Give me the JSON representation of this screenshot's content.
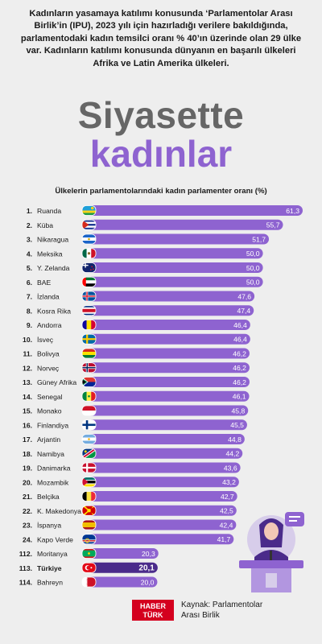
{
  "intro": "Kadınların yasamaya katılımı konusunda ‘Parlamentolar Arası Birlik’in (IPU), 2023 yılı için hazırladığı verilere bakıldığında, parlamentodaki kadın temsilci oranı % 40’ın üzerinde olan 29 ülke var. Kadınların katılımı konusunda dünyanın en başarılı ülkeleri Afrika ve Latin Amerika ülkeleri.",
  "title_line1": "Siyasette",
  "title_line2": "kadınlar",
  "source_line1": "Kaynak: Parlamentolar",
  "source_line2": "Arası Birlik",
  "logo_line1": "HABER",
  "logo_line2": "TÜRK",
  "colors": {
    "bar": "#8e63d0",
    "highlight": "#4a2b8a",
    "title_gray": "#666666",
    "accent": "#8e63d0",
    "logo": "#d4001e"
  },
  "chart_data": {
    "type": "bar",
    "orientation": "horizontal",
    "title": "Ülkelerin parlamentolarındaki kadın parlamenter oranı (%)",
    "xlim": [
      0,
      61.3
    ],
    "highlight": "Türkiye",
    "ranks": [
      "1.",
      "2.",
      "3.",
      "4.",
      "5.",
      "6.",
      "7.",
      "8.",
      "9.",
      "10.",
      "11.",
      "12.",
      "13.",
      "14.",
      "15.",
      "16.",
      "17.",
      "18.",
      "19.",
      "20.",
      "21.",
      "22.",
      "23.",
      "24.",
      "112.",
      "113.",
      "114."
    ],
    "categories": [
      "Ruanda",
      "Küba",
      "Nikaragua",
      "Meksika",
      "Y. Zelanda",
      "BAE",
      "İzlanda",
      "Kosra Rika",
      "Andorra",
      "İsveç",
      "Bolivya",
      "Norveç",
      "Güney Afrika",
      "Senegal",
      "Monako",
      "Finlandiya",
      "Arjantin",
      "Namibya",
      "Danimarka",
      "Mozambik",
      "Belçika",
      "K. Makedonya",
      "İspanya",
      "Kapo Verde",
      "Moritanya",
      "Türkiye",
      "Bahreyn"
    ],
    "labels": [
      "61,3",
      "55,7",
      "51,7",
      "50,0",
      "50,0",
      "50,0",
      "47,6",
      "47,4",
      "46,4",
      "46,4",
      "46,2",
      "46,2",
      "46,2",
      "46,1",
      "45,8",
      "45,5",
      "44,8",
      "44,2",
      "43,6",
      "43,2",
      "42,7",
      "42,5",
      "42,4",
      "41,7",
      "20,3",
      "20,1",
      "20,0"
    ],
    "values": [
      61.3,
      55.7,
      51.7,
      50.0,
      50.0,
      50.0,
      47.6,
      47.4,
      46.4,
      46.4,
      46.2,
      46.2,
      46.2,
      46.1,
      45.8,
      45.5,
      44.8,
      44.2,
      43.6,
      43.2,
      42.7,
      42.5,
      42.4,
      41.7,
      20.3,
      20.1,
      20.0
    ],
    "flags": [
      "rwanda-flag-icon",
      "cuba-flag-icon",
      "nicaragua-flag-icon",
      "mexico-flag-icon",
      "new-zealand-flag-icon",
      "uae-flag-icon",
      "iceland-flag-icon",
      "costa-rica-flag-icon",
      "andorra-flag-icon",
      "sweden-flag-icon",
      "bolivia-flag-icon",
      "norway-flag-icon",
      "south-africa-flag-icon",
      "senegal-flag-icon",
      "monaco-flag-icon",
      "finland-flag-icon",
      "argentina-flag-icon",
      "namibia-flag-icon",
      "denmark-flag-icon",
      "mozambique-flag-icon",
      "belgium-flag-icon",
      "north-macedonia-flag-icon",
      "spain-flag-icon",
      "cape-verde-flag-icon",
      "mauritania-flag-icon",
      "turkey-flag-icon",
      "bahrain-flag-icon"
    ]
  }
}
